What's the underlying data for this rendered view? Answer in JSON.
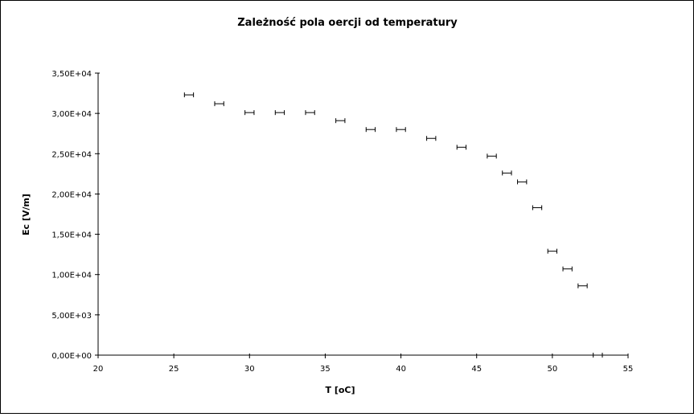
{
  "chart_data": {
    "type": "scatter",
    "title": "Zależność pola oercji od temperatury",
    "xlabel": "T [oC]",
    "ylabel": "Ec [V/m]",
    "xlim": [
      20,
      55
    ],
    "ylim": [
      0,
      35000
    ],
    "x_ticks": [
      20,
      25,
      30,
      35,
      40,
      45,
      50,
      55
    ],
    "x_tick_labels": [
      "20",
      "25",
      "30",
      "35",
      "40",
      "45",
      "50",
      "55"
    ],
    "y_ticks": [
      0,
      5000,
      10000,
      15000,
      20000,
      25000,
      30000,
      35000
    ],
    "y_tick_labels": [
      "0,00E+00",
      "5,00E+03",
      "1,00E+04",
      "1,50E+04",
      "2,00E+04",
      "2,50E+04",
      "3,00E+04",
      "3,50E+04"
    ],
    "grid": false,
    "legend": "none",
    "marker": "horizontal error bar",
    "x_error": 0.3,
    "x": [
      26,
      28,
      30,
      32,
      34,
      36,
      38,
      40,
      42,
      44,
      46,
      47,
      48,
      49,
      50,
      51,
      52,
      53
    ],
    "y": [
      32300,
      31200,
      30100,
      30100,
      30100,
      29100,
      28000,
      28000,
      26900,
      25800,
      24700,
      22600,
      21500,
      18300,
      12900,
      10700,
      8600,
      0
    ]
  }
}
